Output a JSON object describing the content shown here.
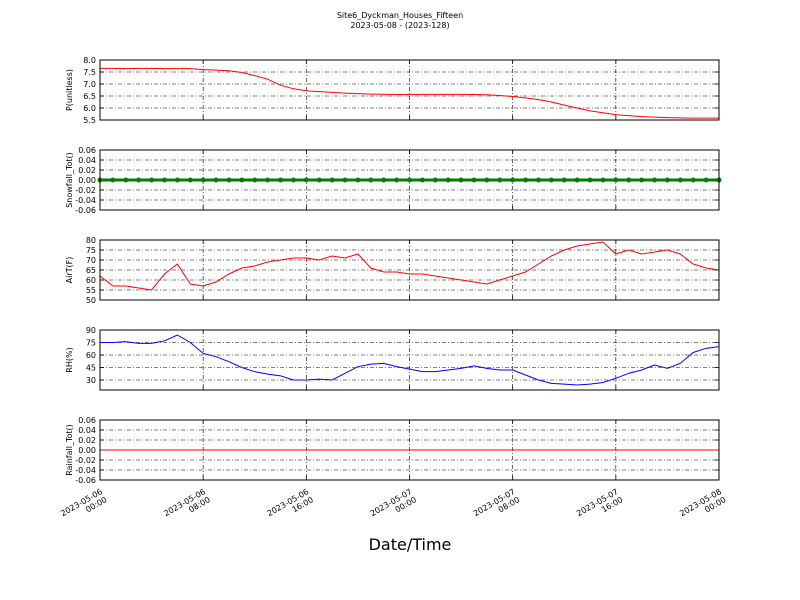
{
  "chart_data": [
    {
      "type": "line",
      "title": "Site6_Dyckman_Houses_Fifteen",
      "subtitle": "2023-05-08 - (2023-128)",
      "y_label": "P(unitless)",
      "x": [
        "2023-05-06 00:00",
        "2023-05-06 01:00",
        "2023-05-06 02:00",
        "2023-05-06 03:00",
        "2023-05-06 04:00",
        "2023-05-06 05:00",
        "2023-05-06 06:00",
        "2023-05-06 07:00",
        "2023-05-06 08:00",
        "2023-05-06 09:00",
        "2023-05-06 10:00",
        "2023-05-06 11:00",
        "2023-05-06 12:00",
        "2023-05-06 13:00",
        "2023-05-06 14:00",
        "2023-05-06 15:00",
        "2023-05-06 16:00",
        "2023-05-06 17:00",
        "2023-05-06 18:00",
        "2023-05-06 19:00",
        "2023-05-06 20:00",
        "2023-05-06 21:00",
        "2023-05-06 22:00",
        "2023-05-06 23:00",
        "2023-05-07 00:00",
        "2023-05-07 01:00",
        "2023-05-07 02:00",
        "2023-05-07 03:00",
        "2023-05-07 04:00",
        "2023-05-07 05:00",
        "2023-05-07 06:00",
        "2023-05-07 07:00",
        "2023-05-07 08:00",
        "2023-05-07 09:00",
        "2023-05-07 10:00",
        "2023-05-07 11:00",
        "2023-05-07 12:00",
        "2023-05-07 13:00",
        "2023-05-07 14:00",
        "2023-05-07 15:00",
        "2023-05-07 16:00",
        "2023-05-07 17:00",
        "2023-05-07 18:00",
        "2023-05-07 19:00",
        "2023-05-07 20:00",
        "2023-05-07 21:00",
        "2023-05-07 22:00",
        "2023-05-07 23:00",
        "2023-05-08 00:00"
      ],
      "series": [
        {
          "color": "#ff0000",
          "values": [
            7.65,
            7.65,
            7.64,
            7.65,
            7.65,
            7.64,
            7.64,
            7.64,
            7.6,
            7.58,
            7.55,
            7.48,
            7.35,
            7.2,
            6.95,
            6.8,
            6.72,
            6.68,
            6.65,
            6.62,
            6.6,
            6.58,
            6.57,
            6.57,
            6.57,
            6.57,
            6.57,
            6.57,
            6.57,
            6.56,
            6.55,
            6.52,
            6.48,
            6.42,
            6.35,
            6.25,
            6.12,
            6.0,
            5.88,
            5.8,
            5.72,
            5.68,
            5.64,
            5.62,
            5.6,
            5.59,
            5.58,
            5.58,
            5.58
          ]
        }
      ],
      "xlim": [
        "2023-05-06 00:00",
        "2023-05-08 00:00"
      ],
      "ylim": [
        5.5,
        8
      ],
      "yticks": [
        5.5,
        {
          "value": 6,
          "label": "6.0"
        },
        6.5,
        {
          "value": 7,
          "label": "7.0"
        },
        7.5,
        {
          "value": 8,
          "label": "8.0"
        }
      ],
      "xticks": [
        "2023-05-06 00:00",
        "2023-05-06 08:00",
        "2023-05-06 16:00",
        "2023-05-07 00:00",
        "2023-05-07 08:00",
        "2023-05-07 16:00",
        "2023-05-08 00:00"
      ],
      "grid": true
    },
    {
      "type": "line",
      "y_label": "Snowfall_Tot()",
      "x": [
        "2023-05-06 00:00",
        "2023-05-06 01:00",
        "2023-05-06 02:00",
        "2023-05-06 03:00",
        "2023-05-06 04:00",
        "2023-05-06 05:00",
        "2023-05-06 06:00",
        "2023-05-06 07:00",
        "2023-05-06 08:00",
        "2023-05-06 09:00",
        "2023-05-06 10:00",
        "2023-05-06 11:00",
        "2023-05-06 12:00",
        "2023-05-06 13:00",
        "2023-05-06 14:00",
        "2023-05-06 15:00",
        "2023-05-06 16:00",
        "2023-05-06 17:00",
        "2023-05-06 18:00",
        "2023-05-06 19:00",
        "2023-05-06 20:00",
        "2023-05-06 21:00",
        "2023-05-06 22:00",
        "2023-05-06 23:00",
        "2023-05-07 00:00",
        "2023-05-07 01:00",
        "2023-05-07 02:00",
        "2023-05-07 03:00",
        "2023-05-07 04:00",
        "2023-05-07 05:00",
        "2023-05-07 06:00",
        "2023-05-07 07:00",
        "2023-05-07 08:00",
        "2023-05-07 09:00",
        "2023-05-07 10:00",
        "2023-05-07 11:00",
        "2023-05-07 12:00",
        "2023-05-07 13:00",
        "2023-05-07 14:00",
        "2023-05-07 15:00",
        "2023-05-07 16:00",
        "2023-05-07 17:00",
        "2023-05-07 18:00",
        "2023-05-07 19:00",
        "2023-05-07 20:00",
        "2023-05-07 21:00",
        "2023-05-07 22:00",
        "2023-05-07 23:00",
        "2023-05-08 00:00"
      ],
      "series": [
        {
          "color": "#008000",
          "marker": "o",
          "values": [
            0,
            0,
            0,
            0,
            0,
            0,
            0,
            0,
            0,
            0,
            0,
            0,
            0,
            0,
            0,
            0,
            0,
            0,
            0,
            0,
            0,
            0,
            0,
            0,
            0,
            0,
            0,
            0,
            0,
            0,
            0,
            0,
            0,
            0,
            0,
            0,
            0,
            0,
            0,
            0,
            0,
            0,
            0,
            0,
            0,
            0,
            0,
            0,
            0
          ]
        }
      ],
      "xlim": [
        "2023-05-06 00:00",
        "2023-05-08 00:00"
      ],
      "ylim": [
        -0.06,
        0.06
      ],
      "yticks": [
        -0.06,
        -0.04,
        -0.02,
        {
          "value": 0,
          "label": "0.00"
        },
        0.02,
        0.04,
        0.06
      ],
      "xticks": [
        "2023-05-06 00:00",
        "2023-05-06 08:00",
        "2023-05-06 16:00",
        "2023-05-07 00:00",
        "2023-05-07 08:00",
        "2023-05-07 16:00",
        "2023-05-08 00:00"
      ],
      "grid": true
    },
    {
      "type": "line",
      "y_label": "AirT(F)",
      "x": [
        "2023-05-06 00:00",
        "2023-05-06 01:00",
        "2023-05-06 02:00",
        "2023-05-06 03:00",
        "2023-05-06 04:00",
        "2023-05-06 05:00",
        "2023-05-06 06:00",
        "2023-05-06 07:00",
        "2023-05-06 08:00",
        "2023-05-06 09:00",
        "2023-05-06 10:00",
        "2023-05-06 11:00",
        "2023-05-06 12:00",
        "2023-05-06 13:00",
        "2023-05-06 14:00",
        "2023-05-06 15:00",
        "2023-05-06 16:00",
        "2023-05-06 17:00",
        "2023-05-06 18:00",
        "2023-05-06 19:00",
        "2023-05-06 20:00",
        "2023-05-06 21:00",
        "2023-05-06 22:00",
        "2023-05-06 23:00",
        "2023-05-07 00:00",
        "2023-05-07 01:00",
        "2023-05-07 02:00",
        "2023-05-07 03:00",
        "2023-05-07 04:00",
        "2023-05-07 05:00",
        "2023-05-07 06:00",
        "2023-05-07 07:00",
        "2023-05-07 08:00",
        "2023-05-07 09:00",
        "2023-05-07 10:00",
        "2023-05-07 11:00",
        "2023-05-07 12:00",
        "2023-05-07 13:00",
        "2023-05-07 14:00",
        "2023-05-07 15:00",
        "2023-05-07 16:00",
        "2023-05-07 17:00",
        "2023-05-07 18:00",
        "2023-05-07 19:00",
        "2023-05-07 20:00",
        "2023-05-07 21:00",
        "2023-05-07 22:00",
        "2023-05-07 23:00",
        "2023-05-08 00:00"
      ],
      "series": [
        {
          "color": "#ff0000",
          "values": [
            62,
            57,
            57,
            56,
            55,
            63,
            68,
            58,
            57,
            59,
            63,
            66,
            67,
            69,
            70,
            71,
            71,
            70,
            72,
            71,
            73,
            66,
            64,
            64,
            63,
            63,
            62,
            61,
            60,
            59,
            58,
            60,
            62,
            64,
            68,
            72,
            75,
            77,
            78,
            79,
            73,
            75,
            73,
            74,
            75,
            73,
            68,
            66,
            65
          ]
        }
      ],
      "xlim": [
        "2023-05-06 00:00",
        "2023-05-08 00:00"
      ],
      "ylim": [
        50,
        80
      ],
      "yticks": [
        50,
        55,
        60,
        65,
        70,
        75,
        80
      ],
      "xticks": [
        "2023-05-06 00:00",
        "2023-05-06 08:00",
        "2023-05-06 16:00",
        "2023-05-07 00:00",
        "2023-05-07 08:00",
        "2023-05-07 16:00",
        "2023-05-08 00:00"
      ],
      "grid": true
    },
    {
      "type": "line",
      "y_label": "RH(%)",
      "x": [
        "2023-05-06 00:00",
        "2023-05-06 01:00",
        "2023-05-06 02:00",
        "2023-05-06 03:00",
        "2023-05-06 04:00",
        "2023-05-06 05:00",
        "2023-05-06 06:00",
        "2023-05-06 07:00",
        "2023-05-06 08:00",
        "2023-05-06 09:00",
        "2023-05-06 10:00",
        "2023-05-06 11:00",
        "2023-05-06 12:00",
        "2023-05-06 13:00",
        "2023-05-06 14:00",
        "2023-05-06 15:00",
        "2023-05-06 16:00",
        "2023-05-06 17:00",
        "2023-05-06 18:00",
        "2023-05-06 19:00",
        "2023-05-06 20:00",
        "2023-05-06 21:00",
        "2023-05-06 22:00",
        "2023-05-06 23:00",
        "2023-05-07 00:00",
        "2023-05-07 01:00",
        "2023-05-07 02:00",
        "2023-05-07 03:00",
        "2023-05-07 04:00",
        "2023-05-07 05:00",
        "2023-05-07 06:00",
        "2023-05-07 07:00",
        "2023-05-07 08:00",
        "2023-05-07 09:00",
        "2023-05-07 10:00",
        "2023-05-07 11:00",
        "2023-05-07 12:00",
        "2023-05-07 13:00",
        "2023-05-07 14:00",
        "2023-05-07 15:00",
        "2023-05-07 16:00",
        "2023-05-07 17:00",
        "2023-05-07 18:00",
        "2023-05-07 19:00",
        "2023-05-07 20:00",
        "2023-05-07 21:00",
        "2023-05-07 22:00",
        "2023-05-07 23:00",
        "2023-05-08 00:00"
      ],
      "series": [
        {
          "color": "#0000ff",
          "values": [
            75,
            75,
            76,
            74,
            74,
            77,
            84,
            75,
            62,
            58,
            52,
            45,
            40,
            37,
            35,
            30,
            30,
            31,
            30,
            38,
            46,
            49,
            50,
            46,
            43,
            40,
            40,
            42,
            44,
            47,
            44,
            42,
            42,
            36,
            30,
            26,
            25,
            24,
            25,
            27,
            32,
            38,
            42,
            48,
            44,
            50,
            63,
            68,
            70
          ]
        }
      ],
      "xlim": [
        "2023-05-06 00:00",
        "2023-05-08 00:00"
      ],
      "ylim": [
        18,
        90
      ],
      "yticks": [
        30,
        45,
        60,
        75,
        90
      ],
      "xticks": [
        "2023-05-06 00:00",
        "2023-05-06 08:00",
        "2023-05-06 16:00",
        "2023-05-07 00:00",
        "2023-05-07 08:00",
        "2023-05-07 16:00",
        "2023-05-08 00:00"
      ],
      "grid": true
    },
    {
      "type": "line",
      "y_label": "Rainfall_Tot()",
      "x_label": "Date/Time",
      "x": [
        "2023-05-06 00:00",
        "2023-05-06 01:00",
        "2023-05-06 02:00",
        "2023-05-06 03:00",
        "2023-05-06 04:00",
        "2023-05-06 05:00",
        "2023-05-06 06:00",
        "2023-05-06 07:00",
        "2023-05-06 08:00",
        "2023-05-06 09:00",
        "2023-05-06 10:00",
        "2023-05-06 11:00",
        "2023-05-06 12:00",
        "2023-05-06 13:00",
        "2023-05-06 14:00",
        "2023-05-06 15:00",
        "2023-05-06 16:00",
        "2023-05-06 17:00",
        "2023-05-06 18:00",
        "2023-05-06 19:00",
        "2023-05-06 20:00",
        "2023-05-06 21:00",
        "2023-05-06 22:00",
        "2023-05-06 23:00",
        "2023-05-07 00:00",
        "2023-05-07 01:00",
        "2023-05-07 02:00",
        "2023-05-07 03:00",
        "2023-05-07 04:00",
        "2023-05-07 05:00",
        "2023-05-07 06:00",
        "2023-05-07 07:00",
        "2023-05-07 08:00",
        "2023-05-07 09:00",
        "2023-05-07 10:00",
        "2023-05-07 11:00",
        "2023-05-07 12:00",
        "2023-05-07 13:00",
        "2023-05-07 14:00",
        "2023-05-07 15:00",
        "2023-05-07 16:00",
        "2023-05-07 17:00",
        "2023-05-07 18:00",
        "2023-05-07 19:00",
        "2023-05-07 20:00",
        "2023-05-07 21:00",
        "2023-05-07 22:00",
        "2023-05-07 23:00",
        "2023-05-08 00:00"
      ],
      "series": [
        {
          "color": "#ff0000",
          "values": [
            0,
            0,
            0,
            0,
            0,
            0,
            0,
            0,
            0,
            0,
            0,
            0,
            0,
            0,
            0,
            0,
            0,
            0,
            0,
            0,
            0,
            0,
            0,
            0,
            0,
            0,
            0,
            0,
            0,
            0,
            0,
            0,
            0,
            0,
            0,
            0,
            0,
            0,
            0,
            0,
            0,
            0,
            0,
            0,
            0,
            0,
            0,
            0,
            0
          ]
        }
      ],
      "xlim": [
        "2023-05-06 00:00",
        "2023-05-08 00:00"
      ],
      "ylim": [
        -0.06,
        0.06
      ],
      "yticks": [
        -0.06,
        -0.04,
        -0.02,
        {
          "value": 0,
          "label": "0.00"
        },
        0.02,
        0.04,
        0.06
      ],
      "xticks": [
        {
          "value": "2023-05-06 00:00",
          "label": "2023-05-06\n00:00"
        },
        {
          "value": "2023-05-06 08:00",
          "label": "2023-05-06\n08:00"
        },
        {
          "value": "2023-05-06 16:00",
          "label": "2023-05-06\n16:00"
        },
        {
          "value": "2023-05-07 00:00",
          "label": "2023-05-07\n00:00"
        },
        {
          "value": "2023-05-07 08:00",
          "label": "2023-05-07\n08:00"
        },
        {
          "value": "2023-05-07 16:00",
          "label": "2023-05-07\n16:00"
        },
        {
          "value": "2023-05-08 00:00",
          "label": "2023-05-08\n00:00"
        }
      ],
      "grid": true
    }
  ]
}
